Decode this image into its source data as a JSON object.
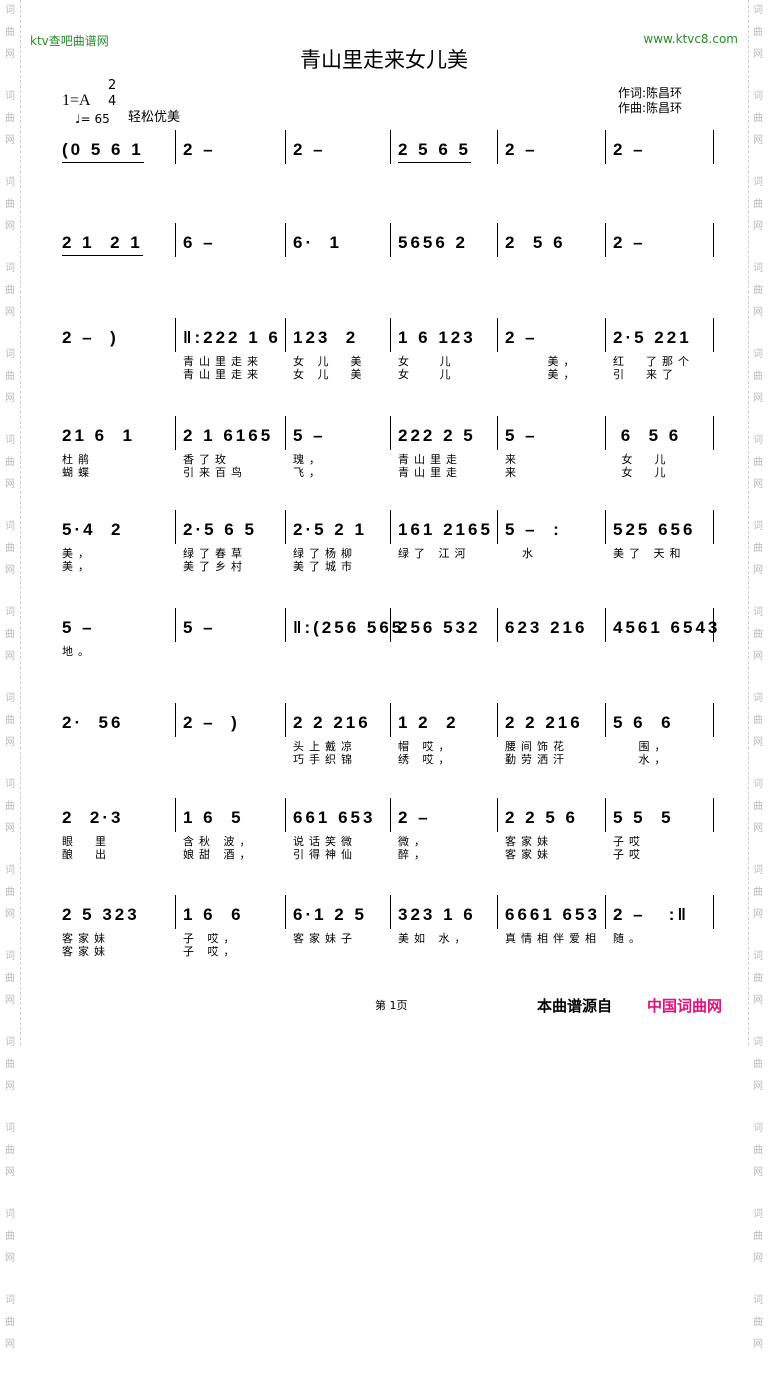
{
  "watermark": "词曲网",
  "header": {
    "site_left": "ktv查吧曲谱网",
    "site_right": "www.ktvc8.com",
    "title": "青山里走来女儿美"
  },
  "meta": {
    "key": "1=A",
    "time_top": "2",
    "time_bottom": "4",
    "tempo": "♩= 65",
    "style": "轻松优美",
    "lyricist": "作词:陈昌环",
    "composer": "作曲:陈昌环"
  },
  "rows": [
    {
      "measures": [
        {
          "notes": "(0 5 6 1",
          "beam": true
        },
        {
          "notes": "2 –"
        },
        {
          "notes": "2 –"
        },
        {
          "notes": "2 5 6 5",
          "beam": true
        },
        {
          "notes": "2 –"
        },
        {
          "notes": "2 –"
        }
      ]
    },
    {
      "measures": [
        {
          "notes": "2 1  2 1",
          "beam": true
        },
        {
          "notes": "6 –"
        },
        {
          "notes": "6·  1"
        },
        {
          "notes": "5656 2"
        },
        {
          "notes": "2  5 6"
        },
        {
          "notes": "2 –"
        }
      ]
    },
    {
      "measures": [
        {
          "notes": "2 –  )"
        },
        {
          "notes": "‖:222 1 6",
          "l1": "青山里走来",
          "l2": "青山里走来"
        },
        {
          "notes": "123  2",
          "l1": "女 儿  美",
          "l2": "女 儿  美"
        },
        {
          "notes": "1 6 123",
          "l1": "女   儿",
          "l2": "女   儿"
        },
        {
          "notes": "2 –",
          "l1": "     美，",
          "l2": "     美，"
        },
        {
          "notes": "2·5 221",
          "l1": "红  了那个",
          "l2": "引  来了"
        }
      ]
    },
    {
      "measures": [
        {
          "notes": "21 6  1",
          "l1": "杜鹃",
          "l2": "蝴蝶"
        },
        {
          "notes": "2 1 6165",
          "l1": "香了玫",
          "l2": "引来百鸟"
        },
        {
          "notes": "5 –",
          "l1": "瑰，",
          "l2": "飞，"
        },
        {
          "notes": "222 2 5",
          "l1": "青山里走",
          "l2": "青山里走"
        },
        {
          "notes": "5 –",
          "l1": "来",
          "l2": "来"
        },
        {
          "notes": " 6  5 6",
          "l1": " 女  儿",
          "l2": " 女  儿"
        }
      ]
    },
    {
      "measures": [
        {
          "notes": "5·4  2",
          "l1": "美，",
          "l2": "美，"
        },
        {
          "notes": "2·5 6 5",
          "l1": "绿了春草",
          "l2": "美了乡村"
        },
        {
          "notes": "2·5 2 1",
          "l1": "绿了杨柳",
          "l2": "美了城市"
        },
        {
          "notes": "161 2165",
          "l1": "绿了 江河",
          "l2": ""
        },
        {
          "notes": "5 –  :",
          "l1": "  水",
          "l2": ""
        },
        {
          "notes": "525 656",
          "l1": "美了 天和",
          "l2": ""
        }
      ]
    },
    {
      "measures": [
        {
          "notes": "5 –",
          "l1": "地。",
          "l2": ""
        },
        {
          "notes": "5 –"
        },
        {
          "notes": "‖:(256 565"
        },
        {
          "notes": "256 532"
        },
        {
          "notes": "623 216"
        },
        {
          "notes": "4561 6543"
        }
      ]
    },
    {
      "measures": [
        {
          "notes": "2·  56"
        },
        {
          "notes": "2 –  )"
        },
        {
          "notes": "2 2 216",
          "l1": "头上戴凉",
          "l2": "巧手织锦"
        },
        {
          "notes": "1 2  2",
          "l1": "帽 哎，",
          "l2": "绣 哎，"
        },
        {
          "notes": "2 2 216",
          "l1": "腰间饰花",
          "l2": "勤劳洒汗"
        },
        {
          "notes": "5 6  6",
          "l1": "   围，",
          "l2": "   水，"
        }
      ]
    },
    {
      "measures": [
        {
          "notes": "2  2·3",
          "l1": "眼  里",
          "l2": "酿  出"
        },
        {
          "notes": "1 6  5",
          "l1": "含秋 波，",
          "l2": "娘甜 酒，"
        },
        {
          "notes": "661 653",
          "l1": "说话笑微",
          "l2": "引得神仙"
        },
        {
          "notes": "2 –",
          "l1": "微，",
          "l2": "醉，"
        },
        {
          "notes": "2 2 5 6",
          "l1": "客家妹",
          "l2": "客家妹"
        },
        {
          "notes": "5 5  5",
          "l1": "子哎",
          "l2": "子哎"
        }
      ]
    },
    {
      "measures": [
        {
          "notes": "2 5 323",
          "l1": "客家妹",
          "l2": "客家妹"
        },
        {
          "notes": "1 6  6",
          "l1": "子 哎，",
          "l2": "子 哎，"
        },
        {
          "notes": "6·1 2 5",
          "l1": "客家妹子",
          "l2": ""
        },
        {
          "notes": "323 1 6",
          "l1": "美如 水，",
          "l2": ""
        },
        {
          "notes": "6661 653",
          "l1": "真情相伴爱相",
          "l2": ""
        },
        {
          "notes": "2 –   :‖",
          "l1": "随。",
          "l2": ""
        }
      ]
    }
  ],
  "footer": {
    "page": "第 1页",
    "source": "本曲谱源自",
    "source_site": "中国词曲网",
    "source_color": "#e0107a"
  }
}
